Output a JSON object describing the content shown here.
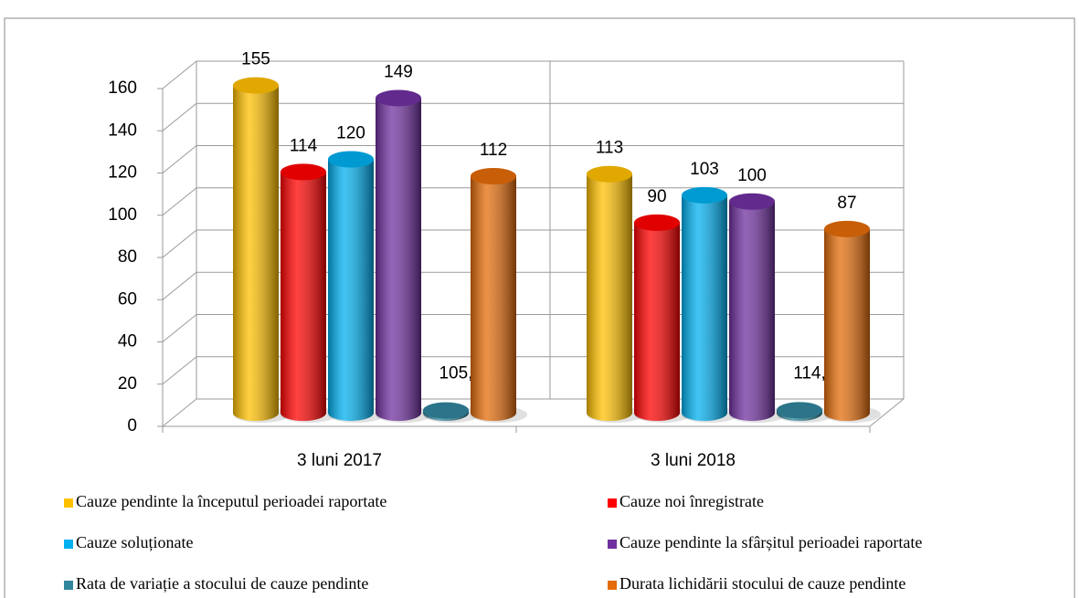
{
  "chart_data": {
    "type": "bar3d",
    "categories": [
      "3 luni 2017",
      "3 luni 2018"
    ],
    "series": [
      {
        "name": "Cauze pendinte la începutul perioadei raportate",
        "color": "#ffc000",
        "values": [
          155,
          113
        ]
      },
      {
        "name": "Cauze noi înregistrate",
        "color": "#ff0000",
        "values": [
          114,
          90
        ]
      },
      {
        "name": "Cauze soluționate",
        "color": "#00b0f0",
        "values": [
          120,
          103
        ]
      },
      {
        "name": "Cauze pendinte la sfârșitul perioadei raportate",
        "color": "#7030a0",
        "values": [
          149,
          100
        ]
      },
      {
        "name": "Rata de variație a stocului de cauze pendinte",
        "color": "#31859c",
        "values": [
          1.0526,
          1.1444
        ],
        "value_labels": [
          "105,26%",
          "114,44%"
        ]
      },
      {
        "name": "Durata lichidării stocului de cauze pendinte",
        "color": "#e46c0a",
        "values": [
          112,
          87
        ]
      }
    ],
    "ylim": [
      0,
      160
    ],
    "yticks": [
      0,
      20,
      40,
      60,
      80,
      100,
      120,
      140,
      160
    ],
    "grid": true
  }
}
